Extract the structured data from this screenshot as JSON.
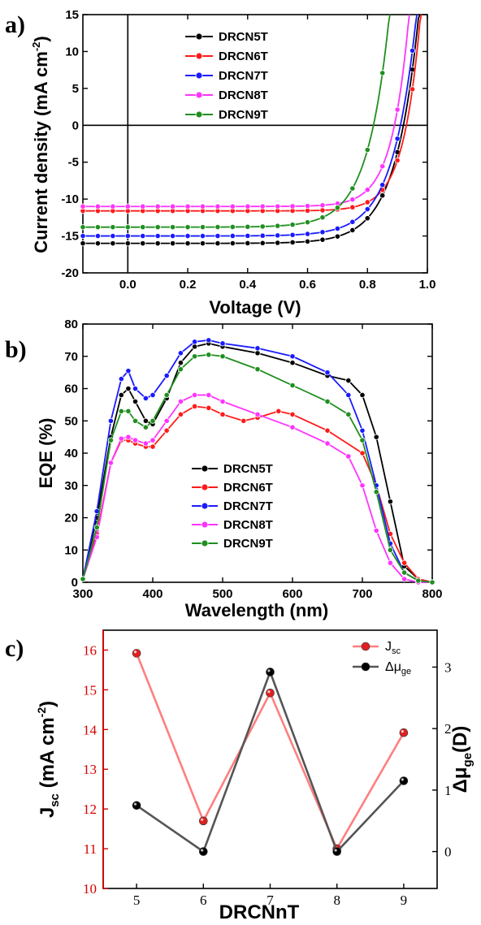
{
  "chart_data": [
    {
      "panel": "a)",
      "type": "line",
      "xlabel": "Voltage (V)",
      "ylabel_main": "Current density (mA cm",
      "ylabel_sup": "-2",
      "ylabel_close": ")",
      "xlim": [
        -0.15,
        1.0
      ],
      "ylim": [
        -20,
        15
      ],
      "xticks": [
        0.0,
        0.2,
        0.4,
        0.6,
        0.8,
        1.0
      ],
      "xtick_labels": [
        "0.0",
        "0.2",
        "0.4",
        "0.6",
        "0.8",
        "1.0"
      ],
      "yticks": [
        -20,
        -15,
        -10,
        -5,
        0,
        5,
        10,
        15
      ],
      "ytick_labels": [
        "-20",
        "-15",
        "-10",
        "-5",
        "0",
        "5",
        "10",
        "15"
      ],
      "legend_position": "top-center",
      "series": [
        {
          "name": "DRCN5T",
          "color": "#000000",
          "jsc": 16.0,
          "voc": 0.92,
          "n": 3.0
        },
        {
          "name": "DRCN6T",
          "color": "#ff1a1a",
          "jsc": 11.6,
          "voc": 0.93,
          "n": 2.2
        },
        {
          "name": "DRCN7T",
          "color": "#1a1aff",
          "jsc": 15.0,
          "voc": 0.91,
          "n": 3.0
        },
        {
          "name": "DRCN8T",
          "color": "#ff33ff",
          "jsc": 11.0,
          "voc": 0.89,
          "n": 2.2
        },
        {
          "name": "DRCN9T",
          "color": "#1f8f1f",
          "jsc": 13.8,
          "voc": 0.82,
          "n": 2.8
        }
      ]
    },
    {
      "panel": "b)",
      "type": "line",
      "xlabel": "Wavelength (nm)",
      "ylabel": "EQE (%)",
      "xlim": [
        300,
        800
      ],
      "ylim": [
        0,
        80
      ],
      "xticks": [
        300,
        400,
        500,
        600,
        700,
        800
      ],
      "xtick_labels": [
        "300",
        "400",
        "500",
        "600",
        "700",
        "800"
      ],
      "yticks": [
        0,
        10,
        20,
        30,
        40,
        50,
        60,
        70,
        80
      ],
      "ytick_labels": [
        "0",
        "10",
        "20",
        "30",
        "40",
        "50",
        "60",
        "70",
        "80"
      ],
      "legend_position": "lower-center",
      "series": [
        {
          "name": "DRCN5T",
          "color": "#000000",
          "x": [
            300,
            320,
            340,
            355,
            365,
            375,
            390,
            400,
            420,
            440,
            460,
            480,
            500,
            550,
            600,
            650,
            680,
            700,
            720,
            740,
            760,
            780,
            800
          ],
          "y": [
            1,
            20,
            45,
            58,
            60,
            56,
            50,
            49,
            57,
            68,
            73,
            74,
            73,
            71,
            68,
            64,
            62.5,
            58,
            45,
            25,
            5,
            1,
            0
          ]
        },
        {
          "name": "DRCN6T",
          "color": "#ff1a1a",
          "x": [
            300,
            320,
            340,
            355,
            365,
            375,
            390,
            400,
            420,
            440,
            460,
            480,
            500,
            530,
            550,
            580,
            600,
            650,
            700,
            720,
            740,
            760,
            780,
            800
          ],
          "y": [
            1,
            15,
            37,
            44,
            44,
            43,
            42,
            42,
            47,
            52,
            54.5,
            54,
            52,
            50,
            51,
            53,
            52,
            47,
            40,
            30,
            15,
            6,
            1,
            0
          ]
        },
        {
          "name": "DRCN7T",
          "color": "#1a1aff",
          "x": [
            300,
            320,
            340,
            355,
            365,
            375,
            390,
            400,
            420,
            440,
            460,
            480,
            500,
            550,
            600,
            650,
            680,
            700,
            720,
            740,
            760,
            780,
            800
          ],
          "y": [
            1,
            22,
            50,
            63,
            65.5,
            60,
            57,
            58,
            64,
            71,
            74.5,
            75,
            74,
            72.5,
            70,
            65,
            58,
            47,
            30,
            12,
            3,
            0.5,
            0
          ]
        },
        {
          "name": "DRCN8T",
          "color": "#ff33ff",
          "x": [
            300,
            320,
            340,
            355,
            365,
            375,
            390,
            400,
            420,
            440,
            460,
            480,
            500,
            550,
            600,
            650,
            680,
            700,
            720,
            740,
            760,
            780,
            800
          ],
          "y": [
            1,
            14,
            37,
            44.5,
            45,
            44,
            43,
            44,
            50,
            56,
            58,
            58,
            56,
            52,
            48,
            43,
            39,
            30,
            16,
            6,
            1,
            0,
            0
          ]
        },
        {
          "name": "DRCN9T",
          "color": "#1f8f1f",
          "x": [
            300,
            320,
            340,
            355,
            365,
            375,
            390,
            400,
            420,
            440,
            460,
            480,
            500,
            550,
            600,
            650,
            680,
            700,
            720,
            740,
            760,
            780,
            800
          ],
          "y": [
            1,
            17,
            44,
            53,
            53,
            50,
            48,
            50,
            58,
            66,
            70,
            70.5,
            70,
            66,
            61,
            56,
            52,
            44,
            28,
            10,
            3,
            0.5,
            0
          ]
        }
      ]
    },
    {
      "panel": "c)",
      "type": "line",
      "xlabel": "DRCNnT",
      "ylabel_left_main": "J",
      "ylabel_left_sub": "sc",
      "ylabel_left_rest": " (mA cm",
      "ylabel_left_sup": "-2",
      "ylabel_left_close": ")",
      "ylabel_right_main": "Δμ",
      "ylabel_right_sub": "ge",
      "ylabel_right_rest": "(D)",
      "categories": [
        5,
        6,
        7,
        8,
        9
      ],
      "xtick_labels": [
        "5",
        "6",
        "7",
        "8",
        "9"
      ],
      "xlim": [
        4.5,
        9.5
      ],
      "ylim_left": [
        10,
        16.5
      ],
      "yticks_left": [
        10,
        11,
        12,
        13,
        14,
        15,
        16
      ],
      "ytick_labels_left": [
        "10",
        "11",
        "12",
        "13",
        "14",
        "15",
        "16"
      ],
      "ylim_right": [
        -0.6,
        3.6
      ],
      "yticks_right": [
        0,
        1,
        2,
        3
      ],
      "ytick_labels_right": [
        "0",
        "1",
        "2",
        "3"
      ],
      "legend_position": "top-right",
      "series": [
        {
          "name_main": "J",
          "name_sub": "sc",
          "color": "#ff7f7f",
          "marker": "#e02020",
          "axis": "left",
          "values": [
            15.92,
            11.7,
            14.92,
            11.0,
            13.92
          ]
        },
        {
          "name_main": "Δμ",
          "name_sub": "ge",
          "color": "#555555",
          "marker": "#000000",
          "axis": "right",
          "values": [
            0.75,
            0.0,
            2.92,
            0.0,
            1.15
          ]
        }
      ]
    }
  ]
}
